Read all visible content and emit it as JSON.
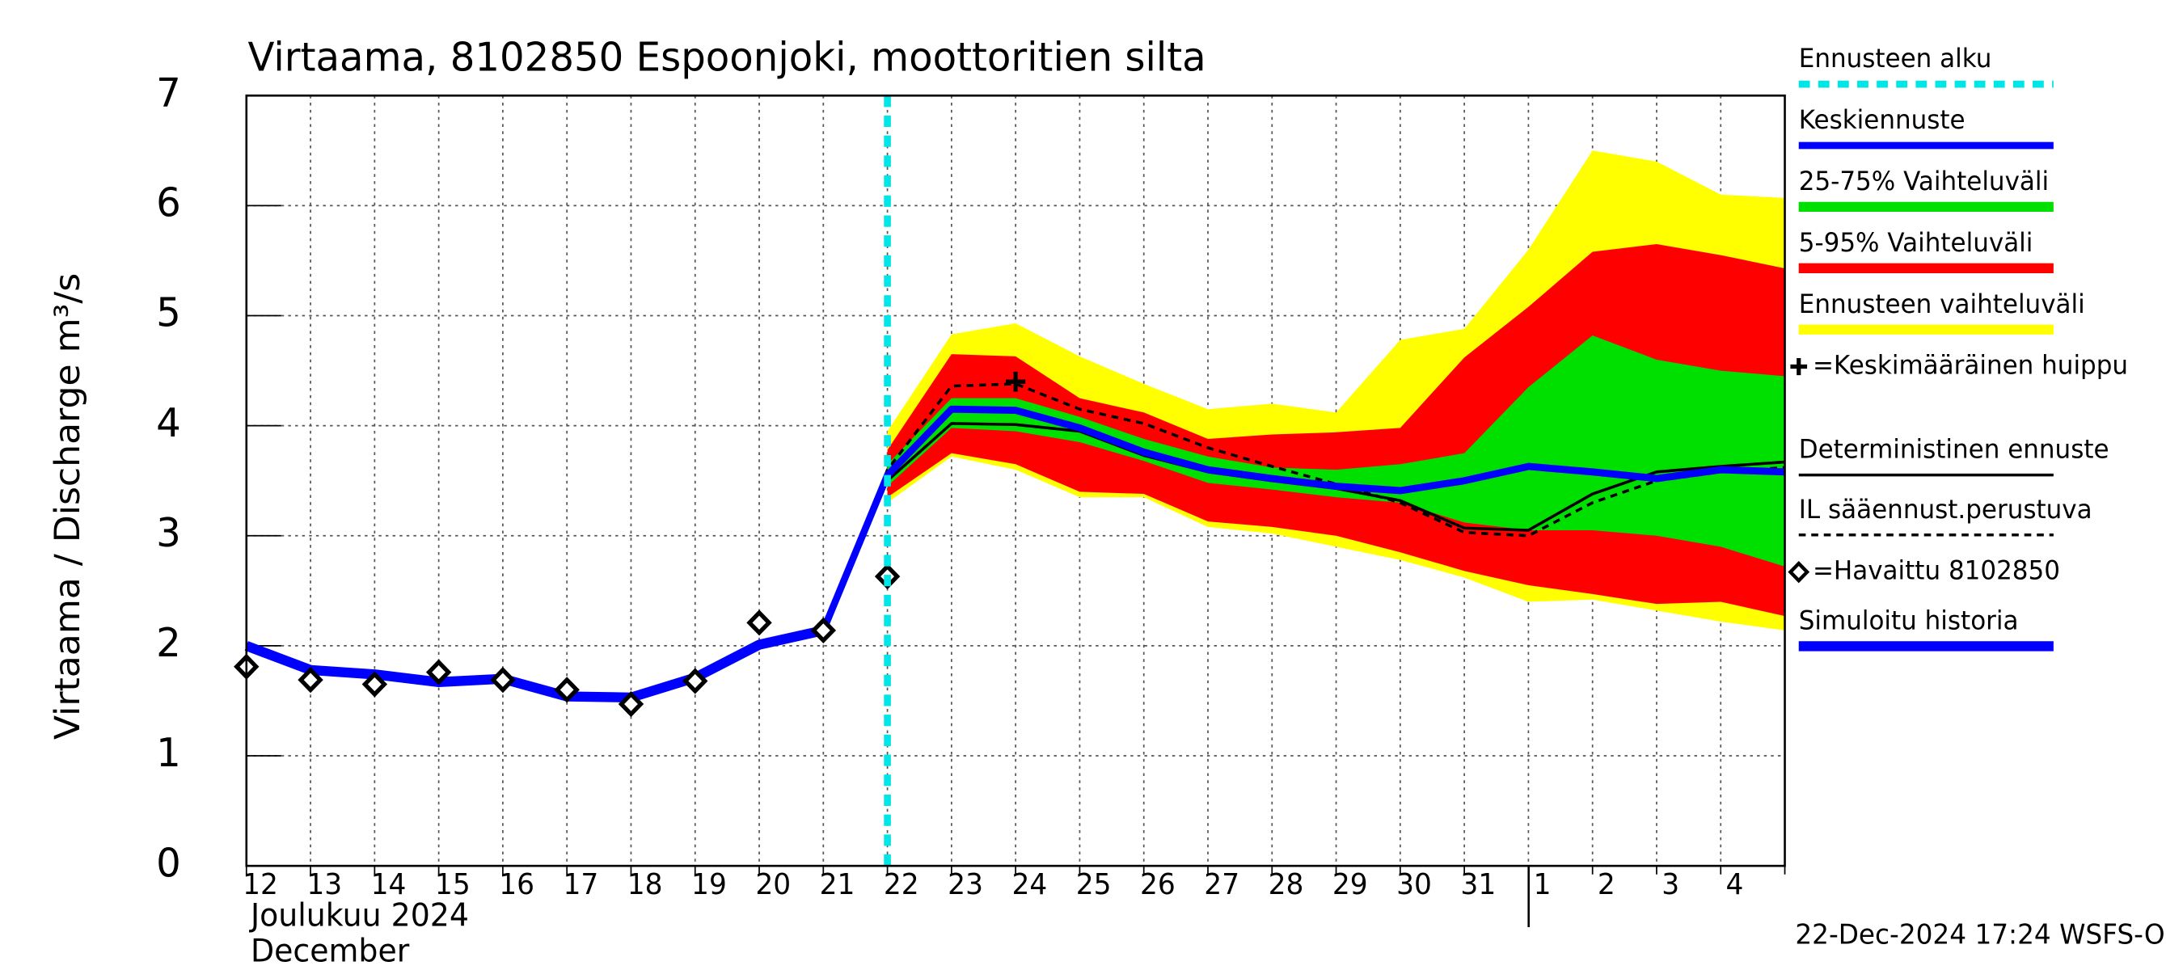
{
  "chart_data": {
    "type": "line",
    "title": "Virtaama, 8102850 Espoonjoki, moottoritien silta",
    "y_label": "Virtaama / Discharge    m³/s",
    "x_label_1": "Joulukuu  2024",
    "x_label_2": "December",
    "footer": "22-Dec-2024 17:24 WSFS-O",
    "categories": [
      "12",
      "13",
      "14",
      "15",
      "16",
      "17",
      "18",
      "19",
      "20",
      "21",
      "22",
      "23",
      "24",
      "25",
      "26",
      "27",
      "28",
      "29",
      "30",
      "31",
      "1",
      "2",
      "3",
      "4",
      null
    ],
    "ylim": [
      0,
      7
    ],
    "yticks": [
      0,
      1,
      2,
      3,
      4,
      5,
      6,
      7
    ],
    "grid": true,
    "forecast_start": {
      "name": "Ennusteen alku",
      "color": "#00e5e5",
      "index": 10
    },
    "bands": [
      {
        "name": "Ennusteen vaihteluväli",
        "color": "#ffff00",
        "low": [
          null,
          null,
          null,
          null,
          null,
          null,
          null,
          null,
          null,
          null,
          3.3,
          3.72,
          3.6,
          3.35,
          3.35,
          3.08,
          3.02,
          2.9,
          2.78,
          2.62,
          2.4,
          2.42,
          2.32,
          2.22,
          2.14
        ],
        "high": [
          null,
          null,
          null,
          null,
          null,
          null,
          null,
          null,
          null,
          null,
          3.95,
          4.83,
          4.93,
          4.63,
          4.38,
          4.15,
          4.2,
          4.12,
          4.78,
          4.88,
          5.6,
          6.5,
          6.4,
          6.1,
          6.07
        ]
      },
      {
        "name": "5-95% Vaihteluväli",
        "color": "#ff0000",
        "low": [
          null,
          null,
          null,
          null,
          null,
          null,
          null,
          null,
          null,
          null,
          3.35,
          3.75,
          3.65,
          3.4,
          3.38,
          3.13,
          3.08,
          3.0,
          2.85,
          2.68,
          2.55,
          2.47,
          2.38,
          2.4,
          2.27
        ],
        "high": [
          null,
          null,
          null,
          null,
          null,
          null,
          null,
          null,
          null,
          null,
          3.78,
          4.65,
          4.63,
          4.25,
          4.12,
          3.88,
          3.92,
          3.94,
          3.98,
          4.62,
          5.08,
          5.58,
          5.65,
          5.55,
          5.43
        ]
      },
      {
        "name": "25-75% Vaihteluväli",
        "color": "#00e000",
        "low": [
          null,
          null,
          null,
          null,
          null,
          null,
          null,
          null,
          null,
          null,
          3.45,
          3.98,
          3.95,
          3.85,
          3.68,
          3.48,
          3.42,
          3.35,
          3.3,
          3.12,
          3.05,
          3.05,
          3.0,
          2.9,
          2.72
        ],
        "high": [
          null,
          null,
          null,
          null,
          null,
          null,
          null,
          null,
          null,
          null,
          3.65,
          4.25,
          4.25,
          4.08,
          3.88,
          3.72,
          3.62,
          3.6,
          3.65,
          3.75,
          4.35,
          4.82,
          4.6,
          4.5,
          4.45
        ]
      }
    ],
    "series": [
      {
        "name": "Deterministinen ennuste",
        "color": "#000000",
        "width": 2,
        "dashed": false,
        "values": [
          null,
          null,
          null,
          null,
          null,
          null,
          null,
          null,
          null,
          2.14,
          3.5,
          4.02,
          4.01,
          3.95,
          3.73,
          3.58,
          3.5,
          3.43,
          3.32,
          3.07,
          3.05,
          3.38,
          3.58,
          3.63,
          3.67
        ]
      },
      {
        "name": "IL sääennust.perustuva",
        "color": "#000000",
        "width": 2,
        "dashed": true,
        "values": [
          null,
          null,
          null,
          null,
          null,
          null,
          null,
          null,
          null,
          2.14,
          3.6,
          4.36,
          4.38,
          4.15,
          4.02,
          3.8,
          3.63,
          3.47,
          3.3,
          3.03,
          3.0,
          3.3,
          3.5,
          3.58,
          3.62
        ]
      },
      {
        "name": "Simuloitu historia",
        "color": "#0000ff",
        "width": 7,
        "dashed": false,
        "values": [
          2.0,
          1.78,
          1.74,
          1.67,
          1.7,
          1.54,
          1.53,
          1.71,
          2.01,
          2.14,
          null,
          null,
          null,
          null,
          null,
          null,
          null,
          null,
          null,
          null,
          null,
          null,
          null,
          null,
          null
        ]
      },
      {
        "name": "Keskiennuste",
        "color": "#0000ff",
        "width": 5,
        "dashed": false,
        "values": [
          null,
          null,
          null,
          null,
          null,
          null,
          null,
          null,
          null,
          2.14,
          3.55,
          4.15,
          4.14,
          3.98,
          3.76,
          3.6,
          3.52,
          3.45,
          3.41,
          3.5,
          3.63,
          3.58,
          3.52,
          3.6,
          3.58
        ]
      }
    ],
    "observed": {
      "name": "=Havaittu 8102850",
      "color": "#000000",
      "values": [
        1.81,
        1.69,
        1.65,
        1.76,
        1.69,
        1.6,
        1.47,
        1.68,
        2.21,
        2.14,
        2.63,
        null,
        null,
        null,
        null,
        null,
        null,
        null,
        null,
        null,
        null,
        null,
        null,
        null,
        null
      ]
    },
    "peak": {
      "name": "=Keskimääräinen huippu",
      "index": 12,
      "value": 4.4
    }
  }
}
